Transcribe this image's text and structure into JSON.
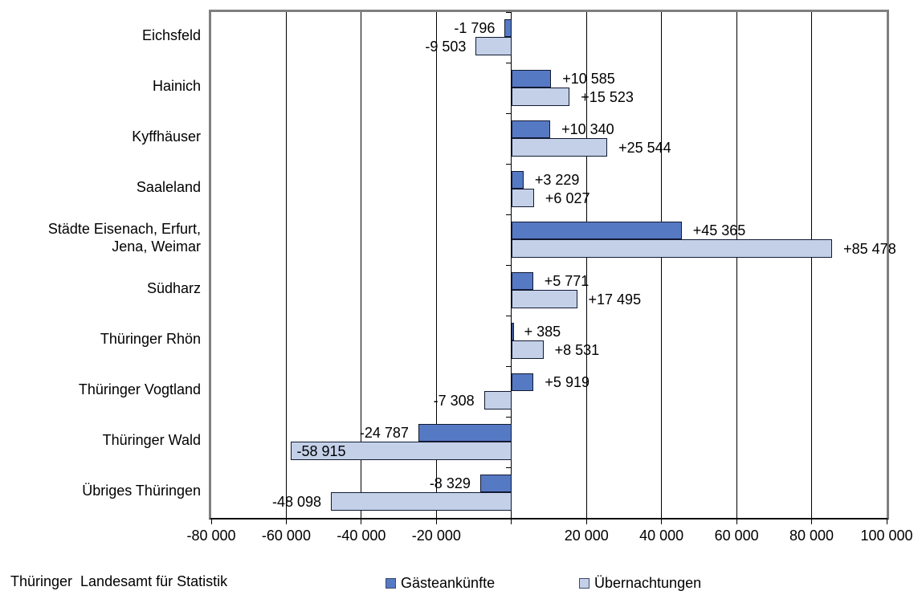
{
  "footer": {
    "source": "Thüringer  Landesamt für Statistik"
  },
  "legend": [
    {
      "label": "Gästeankünfte",
      "color": "#5679C4"
    },
    {
      "label": "Übernachtungen",
      "color": "#C3D0E8"
    }
  ],
  "colors": {
    "series_dark": "#5679C4",
    "series_light": "#C3D0E8",
    "bar_border": "#121A33",
    "plot_border": "#7F7F7F",
    "gridline": "#000000",
    "background": "#FFFFFF",
    "text": "#000000"
  },
  "chart_data": {
    "type": "bar",
    "orientation": "horizontal",
    "title": "",
    "xlabel": "",
    "ylabel": "",
    "xlim": [
      -80000,
      100000
    ],
    "x_tick_step": 20000,
    "x_ticks": [
      -80000,
      -60000,
      -40000,
      -20000,
      0,
      20000,
      40000,
      60000,
      80000,
      100000
    ],
    "x_tick_labels": [
      "-80 000",
      "-60 000",
      "-40 000",
      "-20 000",
      "",
      "20 000",
      "40 000",
      "60 000",
      "80 000",
      "100 000"
    ],
    "grid": true,
    "legend_position": "bottom",
    "categories": [
      "Eichsfeld",
      "Hainich",
      "Kyffhäuser",
      "Saaleland",
      "Städte Eisenach, Erfurt, Jena, Weimar",
      "Südharz",
      "Thüringer Rhön",
      "Thüringer Vogtland",
      "Thüringer Wald",
      "Übriges Thüringen"
    ],
    "category_display": [
      "Eichsfeld",
      "Hainich",
      "Kyffhäuser",
      "Saaleland",
      "Städte Eisenach, Erfurt,\nJena, Weimar",
      "Südharz",
      "Thüringer Rhön",
      "Thüringer Vogtland",
      "Thüringer Wald",
      "Übriges Thüringen"
    ],
    "series": [
      {
        "name": "Gästeankünfte",
        "color": "#5679C4",
        "values": [
          -1796,
          10585,
          10340,
          3229,
          45365,
          5771,
          385,
          5919,
          -24787,
          -8329
        ],
        "labels": [
          "-1 796",
          "+10 585",
          "+10 340",
          "+3 229",
          "+45 365",
          "+5 771",
          "+ 385",
          "+5 919",
          "-24 787",
          "-8 329"
        ],
        "label_inside": [
          false,
          false,
          false,
          false,
          false,
          false,
          false,
          false,
          false,
          false
        ]
      },
      {
        "name": "Übernachtungen",
        "color": "#C3D0E8",
        "values": [
          -9503,
          15523,
          25544,
          6027,
          85478,
          17495,
          8531,
          -7308,
          -58915,
          -48098
        ],
        "labels": [
          "-9 503",
          "+15 523",
          "+25 544",
          "+6 027",
          "+85 478",
          "+17 495",
          "+8 531",
          "-7 308",
          "-58 915",
          "-48 098"
        ],
        "label_inside": [
          false,
          false,
          false,
          false,
          false,
          false,
          false,
          false,
          true,
          false
        ]
      }
    ]
  }
}
